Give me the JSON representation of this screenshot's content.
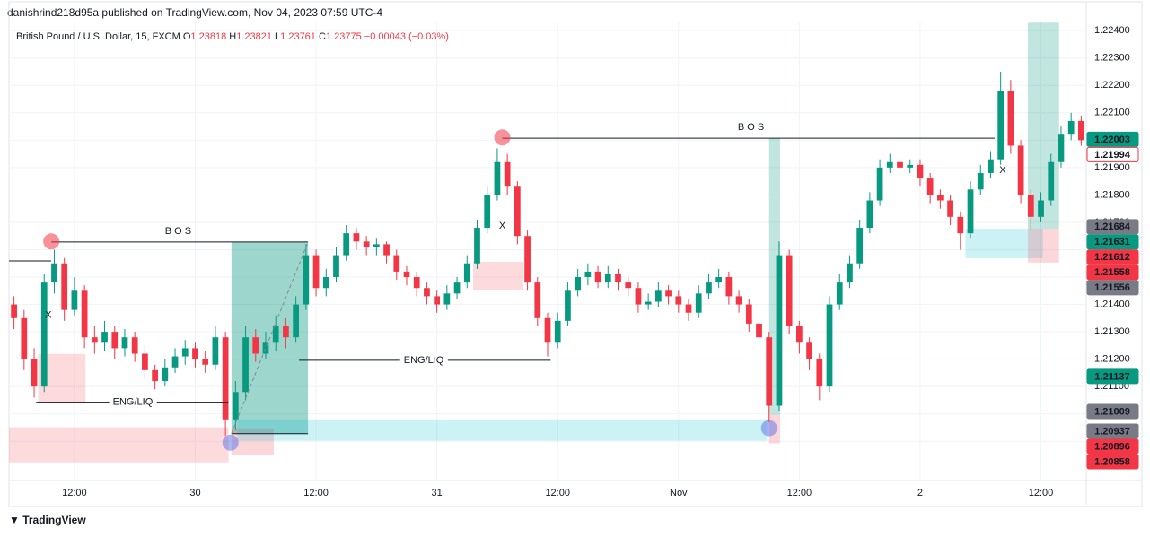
{
  "header": {
    "published": "danishrind218d95a published on TradingView.com, Nov 04, 2023 07:59 UTC-4"
  },
  "legend": {
    "symbol": "British Pound / U.S. Dollar, 15, FXCM",
    "ohlc": [
      {
        "label": "O",
        "value": "1.23818"
      },
      {
        "label": "H",
        "value": "1.23821"
      },
      {
        "label": "L",
        "value": "1.23761"
      },
      {
        "label": "C",
        "value": "1.23775"
      }
    ],
    "change": "−0.00043 (−0.03%)"
  },
  "footer": {
    "brand": "TradingView"
  },
  "chart_data": {
    "type": "candlestick",
    "up_color": "#089981",
    "down_color": "#f23645",
    "grid": true,
    "xlim": [
      -0.5,
      106.5
    ],
    "ylim": [
      1.2076,
      1.2243
    ],
    "xticks": [
      {
        "value": 6,
        "label": "12:00"
      },
      {
        "value": 18,
        "label": "30"
      },
      {
        "value": 30,
        "label": "12:00"
      },
      {
        "value": 42,
        "label": "31"
      },
      {
        "value": 54,
        "label": "12:00"
      },
      {
        "value": 66,
        "label": "Nov"
      },
      {
        "value": 78,
        "label": "12:00"
      },
      {
        "value": 90,
        "label": "2"
      },
      {
        "value": 102,
        "label": "12:00"
      }
    ],
    "yticks": [
      {
        "value": 1.224,
        "label": "1.22400"
      },
      {
        "value": 1.223,
        "label": "1.22300"
      },
      {
        "value": 1.222,
        "label": "1.22200"
      },
      {
        "value": 1.221,
        "label": "1.22100"
      },
      {
        "value": 1.22,
        "label": "1.22000"
      },
      {
        "value": 1.219,
        "label": "1.21900"
      },
      {
        "value": 1.218,
        "label": "1.21800"
      },
      {
        "value": 1.217,
        "label": "1.21700"
      },
      {
        "value": 1.216,
        "label": "1.21600"
      },
      {
        "value": 1.215,
        "label": "1.21500"
      },
      {
        "value": 1.214,
        "label": "1.21400"
      },
      {
        "value": 1.213,
        "label": "1.21300"
      },
      {
        "value": 1.212,
        "label": "1.21200"
      },
      {
        "value": 1.211,
        "label": "1.21100"
      },
      {
        "value": 1.21,
        "label": "1.21000"
      },
      {
        "value": 1.209,
        "label": "1.20900"
      }
    ],
    "candles": [
      [
        1.214,
        1.2143,
        1.2131,
        1.2135
      ],
      [
        1.2135,
        1.2138,
        1.2116,
        1.212
      ],
      [
        1.212,
        1.2124,
        1.2106,
        1.211
      ],
      [
        1.211,
        1.2151,
        1.2108,
        1.2148
      ],
      [
        1.2148,
        1.216,
        1.2144,
        1.2155
      ],
      [
        1.2155,
        1.2157,
        1.2134,
        1.2138
      ],
      [
        1.2138,
        1.215,
        1.2136,
        1.2145
      ],
      [
        1.2145,
        1.2147,
        1.2124,
        1.2128
      ],
      [
        1.2128,
        1.2132,
        1.2122,
        1.2126
      ],
      [
        1.2126,
        1.2134,
        1.2123,
        1.213
      ],
      [
        1.213,
        1.2132,
        1.212,
        1.2124
      ],
      [
        1.2124,
        1.2131,
        1.2121,
        1.2128
      ],
      [
        1.2128,
        1.213,
        1.2119,
        1.2122
      ],
      [
        1.2122,
        1.2125,
        1.2113,
        1.2116
      ],
      [
        1.2116,
        1.2118,
        1.2109,
        1.2112
      ],
      [
        1.2112,
        1.212,
        1.211,
        1.2117
      ],
      [
        1.2117,
        1.2124,
        1.2115,
        1.2121
      ],
      [
        1.2121,
        1.2127,
        1.2118,
        1.2124
      ],
      [
        1.2124,
        1.2126,
        1.2117,
        1.212
      ],
      [
        1.212,
        1.2123,
        1.2115,
        1.2118
      ],
      [
        1.2118,
        1.2132,
        1.2116,
        1.2128
      ],
      [
        1.2128,
        1.213,
        1.2092,
        1.2098
      ],
      [
        1.2098,
        1.2112,
        1.2094,
        1.2108
      ],
      [
        1.2108,
        1.2132,
        1.2105,
        1.2128
      ],
      [
        1.2128,
        1.2131,
        1.2119,
        1.2122
      ],
      [
        1.2122,
        1.213,
        1.212,
        1.2126
      ],
      [
        1.2126,
        1.2136,
        1.2123,
        1.2132
      ],
      [
        1.2132,
        1.2135,
        1.2124,
        1.2128
      ],
      [
        1.2128,
        1.2143,
        1.2126,
        1.214
      ],
      [
        1.214,
        1.2162,
        1.2138,
        1.2158
      ],
      [
        1.2158,
        1.216,
        1.2143,
        1.2146
      ],
      [
        1.2146,
        1.2153,
        1.2143,
        1.215
      ],
      [
        1.215,
        1.2161,
        1.2148,
        1.2158
      ],
      [
        1.2158,
        1.2169,
        1.2156,
        1.2166
      ],
      [
        1.2166,
        1.2168,
        1.216,
        1.2163
      ],
      [
        1.2163,
        1.2165,
        1.2158,
        1.2161
      ],
      [
        1.2161,
        1.2164,
        1.2158,
        1.2162
      ],
      [
        1.2162,
        1.2163,
        1.2155,
        1.2158
      ],
      [
        1.2158,
        1.216,
        1.2149,
        1.2152
      ],
      [
        1.2152,
        1.2154,
        1.2147,
        1.215
      ],
      [
        1.215,
        1.2152,
        1.2143,
        1.2146
      ],
      [
        1.2146,
        1.2148,
        1.214,
        1.2143
      ],
      [
        1.2143,
        1.2145,
        1.2137,
        1.214
      ],
      [
        1.214,
        1.2147,
        1.2138,
        1.2144
      ],
      [
        1.2144,
        1.215,
        1.2142,
        1.2148
      ],
      [
        1.2148,
        1.2158,
        1.2146,
        1.2155
      ],
      [
        1.2155,
        1.2171,
        1.2153,
        1.2168
      ],
      [
        1.2168,
        1.2183,
        1.2166,
        1.218
      ],
      [
        1.218,
        1.2197,
        1.2178,
        1.2192
      ],
      [
        1.2192,
        1.2195,
        1.218,
        1.2183
      ],
      [
        1.2183,
        1.2185,
        1.2162,
        1.2165
      ],
      [
        1.2165,
        1.2167,
        1.2145,
        1.2148
      ],
      [
        1.2148,
        1.215,
        1.2132,
        1.2135
      ],
      [
        1.2135,
        1.2137,
        1.2121,
        1.2126
      ],
      [
        1.2126,
        1.2137,
        1.2124,
        1.2134
      ],
      [
        1.2134,
        1.2148,
        1.2132,
        1.2145
      ],
      [
        1.2145,
        1.2153,
        1.2143,
        1.215
      ],
      [
        1.215,
        1.2155,
        1.2147,
        1.2152
      ],
      [
        1.2152,
        1.2154,
        1.2146,
        1.2148
      ],
      [
        1.2148,
        1.2154,
        1.2146,
        1.2151
      ],
      [
        1.2151,
        1.2153,
        1.2145,
        1.2148
      ],
      [
        1.2148,
        1.215,
        1.2143,
        1.2146
      ],
      [
        1.2146,
        1.2148,
        1.2137,
        1.214
      ],
      [
        1.214,
        1.2144,
        1.2138,
        1.2141
      ],
      [
        1.2141,
        1.2148,
        1.2139,
        1.2145
      ],
      [
        1.2145,
        1.2147,
        1.214,
        1.2143
      ],
      [
        1.2143,
        1.2145,
        1.2137,
        1.214
      ],
      [
        1.214,
        1.2142,
        1.2134,
        1.2137
      ],
      [
        1.2137,
        1.2147,
        1.2135,
        1.2144
      ],
      [
        1.2144,
        1.2151,
        1.2142,
        1.2148
      ],
      [
        1.2148,
        1.2153,
        1.2146,
        1.215
      ],
      [
        1.215,
        1.2152,
        1.214,
        1.2143
      ],
      [
        1.2143,
        1.2145,
        1.2137,
        1.214
      ],
      [
        1.214,
        1.2142,
        1.213,
        1.2133
      ],
      [
        1.2133,
        1.2135,
        1.2124,
        1.2128
      ],
      [
        1.2128,
        1.213,
        1.2097,
        1.2103
      ],
      [
        1.2103,
        1.2163,
        1.2101,
        1.2158
      ],
      [
        1.2158,
        1.216,
        1.2129,
        1.2132
      ],
      [
        1.2132,
        1.2134,
        1.2122,
        1.2126
      ],
      [
        1.2126,
        1.2128,
        1.2116,
        1.212
      ],
      [
        1.212,
        1.2122,
        1.2105,
        1.211
      ],
      [
        1.211,
        1.2143,
        1.2108,
        1.214
      ],
      [
        1.214,
        1.2151,
        1.2138,
        1.2148
      ],
      [
        1.2148,
        1.2158,
        1.2146,
        1.2155
      ],
      [
        1.2155,
        1.2171,
        1.2153,
        1.2168
      ],
      [
        1.2168,
        1.2181,
        1.2166,
        1.2178
      ],
      [
        1.2178,
        1.2193,
        1.2176,
        1.219
      ],
      [
        1.219,
        1.2195,
        1.2188,
        1.2192
      ],
      [
        1.2192,
        1.2194,
        1.2187,
        1.219
      ],
      [
        1.219,
        1.2193,
        1.2188,
        1.2191
      ],
      [
        1.2191,
        1.2193,
        1.2183,
        1.2186
      ],
      [
        1.2186,
        1.2188,
        1.2177,
        1.218
      ],
      [
        1.218,
        1.2182,
        1.2175,
        1.2178
      ],
      [
        1.2178,
        1.218,
        1.2169,
        1.2172
      ],
      [
        1.2172,
        1.2174,
        1.216,
        1.2166
      ],
      [
        1.2166,
        1.2185,
        1.2164,
        1.2182
      ],
      [
        1.2182,
        1.2191,
        1.218,
        1.2188
      ],
      [
        1.2188,
        1.2196,
        1.2186,
        1.2193
      ],
      [
        1.2193,
        1.2225,
        1.2191,
        1.2218
      ],
      [
        1.2218,
        1.2222,
        1.2195,
        1.2198
      ],
      [
        1.2198,
        1.22,
        1.2177,
        1.218
      ],
      [
        1.218,
        1.2182,
        1.2167,
        1.2172
      ],
      [
        1.2172,
        1.2181,
        1.217,
        1.2178
      ],
      [
        1.2178,
        1.2195,
        1.2176,
        1.2192
      ],
      [
        1.2192,
        1.2205,
        1.219,
        1.2202
      ],
      [
        1.2202,
        1.221,
        1.22,
        1.2207
      ],
      [
        1.2207,
        1.2209,
        1.2198,
        1.22
      ]
    ],
    "zones": [
      {
        "x": [
          -0.5,
          21.3
        ],
        "y": [
          1.20823,
          1.20951
        ],
        "color": "rgba(242,54,69,0.18)"
      },
      {
        "x": [
          2.4,
          7.1
        ],
        "y": [
          1.21043,
          1.21219
        ],
        "color": "rgba(242,54,69,0.18)"
      },
      {
        "x": [
          21.6,
          29.2
        ],
        "y": [
          1.20928,
          1.21628
        ],
        "color": "rgba(8,153,129,0.4)"
      },
      {
        "x": [
          21.6,
          25.8
        ],
        "y": [
          1.2085,
          1.20948
        ],
        "color": "rgba(242,54,69,0.2)"
      },
      {
        "x": [
          22.2,
          74.8
        ],
        "y": [
          1.20902,
          1.2098
        ],
        "color": "rgba(0,188,212,0.2)"
      },
      {
        "x": [
          45.6,
          50.6
        ],
        "y": [
          1.21451,
          1.21556
        ],
        "color": "rgba(242,54,69,0.18)"
      },
      {
        "x": [
          75.0,
          76.1
        ],
        "y": [
          1.20997,
          1.22007
        ],
        "color": "rgba(8,153,129,0.25)"
      },
      {
        "x": [
          75.0,
          76.1
        ],
        "y": [
          1.20892,
          1.20997
        ],
        "color": "rgba(242,54,69,0.2)"
      },
      {
        "x": [
          94.5,
          102.2
        ],
        "y": [
          1.21569,
          1.21677
        ],
        "color": "rgba(0,188,212,0.2)"
      },
      {
        "x": [
          100.7,
          103.8
        ],
        "y": [
          1.21677,
          1.22429
        ],
        "color": "rgba(8,153,129,0.25)"
      },
      {
        "x": [
          100.7,
          103.8
        ],
        "y": [
          1.21553,
          1.21677
        ],
        "color": "rgba(242,54,69,0.2)"
      }
    ],
    "lines": [
      {
        "x": [
          -0.5,
          3.7
        ],
        "y": [
          1.21559,
          1.21559
        ]
      },
      {
        "x": [
          3.7,
          29.2
        ],
        "y": [
          1.21628,
          1.21628
        ]
      },
      {
        "x": [
          48.5,
          97.4
        ],
        "y": [
          1.22007,
          1.22007
        ]
      },
      {
        "x": [
          2.2,
          21.3
        ],
        "y": [
          1.21043,
          1.21043
        ]
      },
      {
        "x": [
          28.3,
          53.3
        ],
        "y": [
          1.21196,
          1.21196
        ]
      },
      {
        "x": [
          21.6,
          29.2
        ],
        "y": [
          1.20928,
          1.20928
        ]
      },
      {
        "x": [
          21.6,
          29.2
        ],
        "y": [
          1.20928,
          1.21628
        ],
        "dashed": true
      }
    ],
    "markers": [
      {
        "x": 3.7,
        "y": 1.2163,
        "color": "rgba(242,54,69,0.55)"
      },
      {
        "x": 48.5,
        "y": 1.2201,
        "color": "rgba(242,54,69,0.55)"
      },
      {
        "x": 21.5,
        "y": 1.20895,
        "color": "rgba(90,110,230,0.5)"
      },
      {
        "x": 75.0,
        "y": 1.20948,
        "color": "rgba(90,110,230,0.5)"
      }
    ],
    "annotations": [
      {
        "text": "B O S",
        "x": 16.3,
        "y": 1.21667
      },
      {
        "text": "B O S",
        "x": 73.2,
        "y": 1.22047
      },
      {
        "text": "ENG/LIQ",
        "x": 11.8,
        "y": 1.21043
      },
      {
        "text": "ENG/LIQ",
        "x": 40.7,
        "y": 1.21196
      },
      {
        "text": "X",
        "x": 3.4,
        "y": 1.2136
      },
      {
        "text": "X",
        "x": 48.5,
        "y": 1.21687
      },
      {
        "text": "X",
        "x": 98.2,
        "y": 1.2189
      }
    ],
    "price_labels": [
      {
        "value": 1.22003,
        "style": "green"
      },
      {
        "value": 1.21994,
        "style": "outline"
      },
      {
        "value": 1.21684,
        "style": "gray"
      },
      {
        "value": 1.21631,
        "style": "green"
      },
      {
        "value": 1.21612,
        "style": "red"
      },
      {
        "value": 1.21558,
        "style": "red"
      },
      {
        "value": 1.21556,
        "style": "gray"
      },
      {
        "value": 1.21137,
        "style": "green"
      },
      {
        "value": 1.21009,
        "style": "gray"
      },
      {
        "value": 1.20937,
        "style": "gray"
      },
      {
        "value": 1.20896,
        "style": "red"
      },
      {
        "value": 1.20858,
        "style": "red"
      }
    ]
  }
}
